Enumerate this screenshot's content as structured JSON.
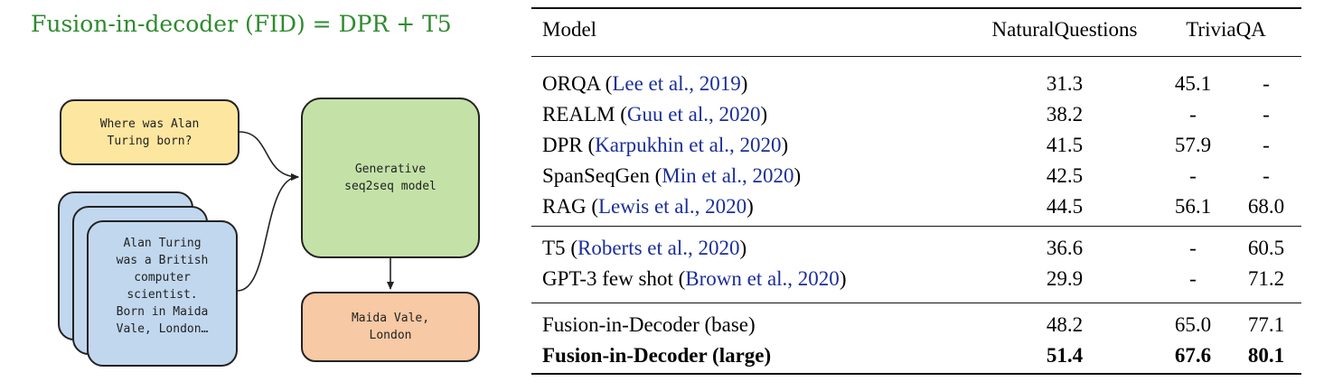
{
  "heading": "Fusion-in-decoder (FID) = DPR + T5",
  "diagram": {
    "question_text": "Where was Alan\nTuring born?",
    "passage_text": "Alan Turing\nwas a British\ncomputer\nscientist.\nBorn in Maida\nVale, London…",
    "model_text": "Generative\nseq2seq model",
    "answer_text": "Maida Vale,\nLondon"
  },
  "table": {
    "headers": {
      "model": "Model",
      "nq": "NaturalQuestions",
      "tqa": "TriviaQA"
    },
    "groups": [
      [
        {
          "name": "ORQA",
          "cite": "Lee et al., 2019",
          "nq": "31.3",
          "tqa1": "45.1",
          "tqa2": "-"
        },
        {
          "name": "REALM",
          "cite": "Guu et al., 2020",
          "nq": "38.2",
          "tqa1": "-",
          "tqa2": "-"
        },
        {
          "name": "DPR",
          "cite": "Karpukhin et al., 2020",
          "nq": "41.5",
          "tqa1": "57.9",
          "tqa2": "-"
        },
        {
          "name": "SpanSeqGen",
          "cite": "Min et al., 2020",
          "nq": "42.5",
          "tqa1": "-",
          "tqa2": "-"
        },
        {
          "name": "RAG",
          "cite": "Lewis et al., 2020",
          "nq": "44.5",
          "tqa1": "56.1",
          "tqa2": "68.0"
        }
      ],
      [
        {
          "name": "T5",
          "cite": "Roberts et al., 2020",
          "nq": "36.6",
          "tqa1": "-",
          "tqa2": "60.5"
        },
        {
          "name": "GPT-3 few shot",
          "cite": "Brown et al., 2020",
          "nq": "29.9",
          "tqa1": "-",
          "tqa2": "71.2"
        }
      ],
      [
        {
          "name": "Fusion-in-Decoder (base)",
          "cite": "",
          "nq": "48.2",
          "tqa1": "65.0",
          "tqa2": "77.1"
        },
        {
          "name": "Fusion-in-Decoder (large)",
          "cite": "",
          "nq": "51.4",
          "tqa1": "67.6",
          "tqa2": "80.1",
          "bold": true
        }
      ]
    ]
  },
  "colors": {
    "heading": "#2e8b2e",
    "citation": "#1a2e99",
    "question_box": "#fde7a0",
    "passage_box": "#c1d7ee",
    "model_box": "#c4e2a8",
    "answer_box": "#f7c9a4"
  }
}
